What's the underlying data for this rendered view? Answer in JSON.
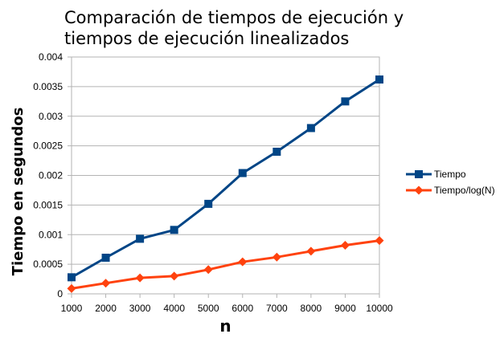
{
  "chart_data": {
    "type": "line",
    "title_lines": [
      "Comparación de tiempos de ejecución y",
      "tiempos de ejecución linealizados"
    ],
    "xlabel": "n",
    "ylabel": "Tiempo en segundos",
    "x": [
      1000,
      2000,
      3000,
      4000,
      5000,
      6000,
      7000,
      8000,
      9000,
      10000
    ],
    "x_tick_labels": [
      "1000",
      "2000",
      "3000",
      "4000",
      "5000",
      "6000",
      "7000",
      "8000",
      "9000",
      "10000"
    ],
    "ylim": [
      0,
      0.004
    ],
    "y_ticks": [
      0,
      0.0005,
      0.001,
      0.0015,
      0.002,
      0.0025,
      0.003,
      0.0035,
      0.004
    ],
    "y_tick_labels": [
      "0",
      "0.0005",
      "0.001",
      "0.0015",
      "0.002",
      "0.0025",
      "0.003",
      "0.0035",
      "0.004"
    ],
    "grid": "horizontal",
    "legend_position": "right",
    "series": [
      {
        "name": "Tiempo",
        "color": "#004586",
        "marker": "square",
        "values": [
          0.00028,
          0.00061,
          0.00093,
          0.00108,
          0.00152,
          0.00204,
          0.0024,
          0.0028,
          0.00325,
          0.00362
        ]
      },
      {
        "name": "Tiempo/log(N)",
        "color": "#ff420e",
        "marker": "diamond",
        "values": [
          9e-05,
          0.00018,
          0.00027,
          0.0003,
          0.00041,
          0.00054,
          0.00062,
          0.00072,
          0.00082,
          0.0009
        ]
      }
    ]
  }
}
